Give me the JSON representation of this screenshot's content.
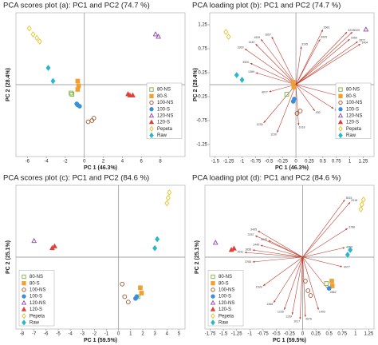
{
  "chart_data": [
    {
      "type": "scatter",
      "title": "PCA scores plot (a): PC1  and PC2 (74.7 %)",
      "x_label": "PC 1 (46.3%)",
      "y_label": "PC 2 (28.4%)",
      "xlim": [
        -7.2,
        10.6
      ],
      "ylim": [
        -6,
        6
      ],
      "xticks": [
        -6,
        -4,
        -2,
        0,
        2,
        4,
        6,
        8
      ],
      "legend": "right",
      "series": [
        {
          "name": "80-NS",
          "color": "#7cb342",
          "marker": "square",
          "filled": false,
          "x": [
            -1.4,
            -1.3
          ],
          "values": [
            -0.7,
            -0.8
          ]
        },
        {
          "name": "80-S",
          "color": "#f0a030",
          "marker": "square",
          "filled": true,
          "x": [
            -0.7,
            -0.6,
            -0.7
          ],
          "values": [
            0.3,
            -0.1,
            -0.4
          ]
        },
        {
          "name": "100-NS",
          "color": "#a0522d",
          "marker": "circle",
          "filled": false,
          "x": [
            0.4,
            0.8,
            1.0
          ],
          "values": [
            -3.1,
            -3.0,
            -2.8
          ]
        },
        {
          "name": "100-S",
          "color": "#3b8fd9",
          "marker": "circle",
          "filled": true,
          "x": [
            -0.7,
            -0.5,
            -0.8
          ],
          "values": [
            -1.7,
            -1.8,
            -1.6
          ]
        },
        {
          "name": "120-NS",
          "color": "#8e44ad",
          "marker": "triangle",
          "filled": false,
          "x": [
            7.5,
            7.8
          ],
          "values": [
            4.2,
            4.0
          ]
        },
        {
          "name": "120-S",
          "color": "#e0403a",
          "marker": "triangle",
          "filled": true,
          "x": [
            4.6,
            4.8,
            5.1
          ],
          "values": [
            -0.8,
            -0.9,
            -0.9
          ]
        },
        {
          "name": "Pepeta",
          "color": "#e6c229",
          "marker": "diamond",
          "filled": false,
          "x": [
            -5.8,
            -5.4,
            -5.0,
            -4.7
          ],
          "values": [
            4.7,
            4.2,
            3.9,
            3.6
          ]
        },
        {
          "name": "Raw",
          "color": "#2ab7ca",
          "marker": "diamond",
          "filled": true,
          "x": [
            -3.8,
            -3.3
          ],
          "values": [
            1.4,
            0.3
          ]
        }
      ]
    },
    {
      "type": "loading",
      "title": "PCA loading plot (b): PC1  and PC2 (74.7 %)",
      "x_label": "PC 1 (46.3%)",
      "y_label": "PC 2 (28.4%)",
      "xlim": [
        -1.6,
        1.45
      ],
      "ylim": [
        -1.5,
        1.5
      ],
      "xticks": [
        -1.5,
        -1.25,
        -1,
        -0.75,
        -0.5,
        -0.25,
        0,
        0.25,
        0.5,
        0.75,
        1,
        1.25
      ],
      "yticks": [
        1.25,
        0.75,
        0.25,
        -0.25,
        -0.75,
        -1.25
      ],
      "legend": "right",
      "series": [
        {
          "name": "80-NS",
          "color": "#7cb342",
          "marker": "square",
          "filled": false,
          "x": [
            -0.17
          ],
          "values": [
            -0.2
          ]
        },
        {
          "name": "80-S",
          "color": "#f0a030",
          "marker": "square",
          "filled": true,
          "x": [
            -0.05,
            -0.04
          ],
          "values": [
            0.05,
            -0.05
          ]
        },
        {
          "name": "100-NS",
          "color": "#a0522d",
          "marker": "circle",
          "filled": false,
          "x": [
            0.02,
            0.08
          ],
          "values": [
            -0.6,
            -0.55
          ]
        },
        {
          "name": "100-S",
          "color": "#3b8fd9",
          "marker": "circle",
          "filled": true,
          "x": [
            -0.05,
            -0.03
          ],
          "values": [
            -0.35,
            -0.3
          ]
        },
        {
          "name": "120-NS",
          "color": "#8e44ad",
          "marker": "triangle",
          "filled": false,
          "x": [
            1.3
          ],
          "values": [
            1.15
          ]
        },
        {
          "name": "120-S",
          "color": "#e0403a",
          "marker": "triangle",
          "filled": true,
          "x": [
            0.85,
            0.9
          ],
          "values": [
            -0.15,
            -0.18
          ]
        },
        {
          "name": "Pepeta",
          "color": "#e6c229",
          "marker": "diamond",
          "filled": false,
          "x": [
            -1.3,
            -1.25
          ],
          "values": [
            1.1,
            1.0
          ]
        },
        {
          "name": "Raw",
          "color": "#2ab7ca",
          "marker": "diamond",
          "filled": true,
          "x": [
            -1.1,
            -1.0
          ],
          "values": [
            0.2,
            0.1
          ]
        }
      ],
      "loadings": {
        "color": "#c0392b",
        "x": [
          0.95,
          1.05,
          1.0,
          1.15,
          1.2,
          0.5,
          0.45,
          0.1,
          -0.45,
          -0.65,
          -0.75,
          -0.95,
          -0.85,
          -0.75,
          -0.5,
          -0.6,
          -0.35,
          0.05,
          0.35,
          0.7,
          0.85
        ],
        "y": [
          1.1,
          1.1,
          0.95,
          0.9,
          0.85,
          1.15,
          0.95,
          0.8,
          1.0,
          0.95,
          0.85,
          0.75,
          0.45,
          0.25,
          -0.15,
          -0.8,
          -1.0,
          -0.85,
          -0.55,
          -0.5,
          -0.25
        ],
        "labels": [
          "3222",
          "3320",
          "2959",
          "2877",
          "1404",
          "3581",
          "3005",
          "3195",
          "1657",
          "1539",
          "1440",
          "3300",
          "3520",
          "1369",
          "4077",
          "1235",
          "1150",
          "1018",
          "930",
          "850",
          "3786"
        ]
      }
    },
    {
      "type": "scatter",
      "title": "PCA scores plot (c): PC1  and PC2 (84.6 %)",
      "x_label": "PC 1 (59.5%)",
      "y_label": "PC 2 (25.1%)",
      "xlim": [
        -8.5,
        5.5
      ],
      "ylim": [
        -4,
        4
      ],
      "xticks": [
        -8,
        -7,
        -6,
        -5,
        -4,
        -3,
        -2,
        -1,
        0,
        1,
        2,
        3,
        4,
        5
      ],
      "legend": "lower left",
      "series": [
        {
          "name": "80-NS",
          "color": "#7cb342",
          "marker": "square",
          "filled": false,
          "x": [
            1.6
          ],
          "values": [
            -2.2
          ]
        },
        {
          "name": "80-S",
          "color": "#f0a030",
          "marker": "square",
          "filled": true,
          "x": [
            1.8,
            1.9
          ],
          "values": [
            -1.7,
            -2.0
          ]
        },
        {
          "name": "100-NS",
          "color": "#a0522d",
          "marker": "circle",
          "filled": false,
          "x": [
            0.3,
            0.5,
            0.8
          ],
          "values": [
            -1.5,
            -2.2,
            -2.5
          ]
        },
        {
          "name": "100-S",
          "color": "#3b8fd9",
          "marker": "circle",
          "filled": true,
          "x": [
            1.5,
            1.4
          ],
          "values": [
            -2.2,
            -2.3
          ]
        },
        {
          "name": "120-NS",
          "color": "#8e44ad",
          "marker": "triangle",
          "filled": false,
          "x": [
            -7.0
          ],
          "values": [
            0.9
          ]
        },
        {
          "name": "120-S",
          "color": "#e0403a",
          "marker": "triangle",
          "filled": true,
          "x": [
            -5.5,
            -5.3
          ],
          "values": [
            0.5,
            0.6
          ]
        },
        {
          "name": "Pepeta",
          "color": "#e6c229",
          "marker": "diamond",
          "filled": false,
          "x": [
            4.0,
            4.1,
            4.2
          ],
          "values": [
            3.0,
            3.3,
            3.6
          ]
        },
        {
          "name": "Raw",
          "color": "#2ab7ca",
          "marker": "diamond",
          "filled": true,
          "x": [
            3.0,
            3.2
          ],
          "values": [
            0.5,
            1.0
          ]
        }
      ]
    },
    {
      "type": "loading",
      "title": "PCA loading plot (d): PC1  and PC2 (84.6 %)",
      "x_label": "PC 1 (59.5%)",
      "y_label": "PC 2 (25.1%)",
      "xlim": [
        -1.85,
        1.35
      ],
      "ylim": [
        -1.5,
        1.5
      ],
      "xticks": [
        -1.75,
        -1.5,
        -1.25,
        -1,
        -0.75,
        -0.5,
        -0.25,
        0,
        0.25,
        0.5,
        0.75,
        1,
        1.25
      ],
      "legend": "lower left",
      "series": [
        {
          "name": "80-NS",
          "color": "#7cb342",
          "marker": "square",
          "filled": false,
          "x": [
            0.45
          ],
          "values": [
            -0.55
          ]
        },
        {
          "name": "80-S",
          "color": "#f0a030",
          "marker": "square",
          "filled": true,
          "x": [
            0.55,
            0.56
          ],
          "values": [
            -0.5,
            -0.6
          ]
        },
        {
          "name": "100-NS",
          "color": "#a0522d",
          "marker": "circle",
          "filled": false,
          "x": [
            0.05,
            0.1,
            0.15
          ],
          "values": [
            -0.5,
            -0.7,
            -0.8
          ]
        },
        {
          "name": "100-S",
          "color": "#3b8fd9",
          "marker": "circle",
          "filled": true,
          "x": [
            0.5
          ],
          "values": [
            -0.65
          ]
        },
        {
          "name": "120-NS",
          "color": "#8e44ad",
          "marker": "triangle",
          "filled": false,
          "x": [
            -1.65
          ],
          "values": [
            0.3
          ]
        },
        {
          "name": "120-S",
          "color": "#e0403a",
          "marker": "triangle",
          "filled": true,
          "x": [
            -1.35,
            -1.3
          ],
          "values": [
            0.15,
            0.18
          ]
        },
        {
          "name": "Pepeta",
          "color": "#e6c229",
          "marker": "diamond",
          "filled": false,
          "x": [
            1.1,
            1.12,
            1.15
          ],
          "values": [
            1.0,
            1.1,
            1.2
          ]
        },
        {
          "name": "Raw",
          "color": "#2ab7ca",
          "marker": "diamond",
          "filled": true,
          "x": [
            0.85,
            0.9
          ],
          "values": [
            0.05,
            0.15
          ]
        }
      ],
      "loadings": {
        "color": "#c0392b",
        "x": [
          0.8,
          0.9,
          0.85,
          0.8,
          0.75,
          0.5,
          0.3,
          0.05,
          -0.05,
          -0.2,
          -0.35,
          -0.55,
          -0.75,
          -0.65,
          -0.8,
          -0.95,
          -1.1,
          -0.9,
          -0.85,
          -0.95
        ],
        "y": [
          1.2,
          1.15,
          0.6,
          0.2,
          -0.2,
          -0.7,
          -1.1,
          -1.25,
          -1.3,
          -1.2,
          -1.1,
          -0.95,
          -0.6,
          0.35,
          0.25,
          0.15,
          0.1,
          0.45,
          0.55,
          -0.1
        ],
        "labels": [
          "3515",
          "2918",
          "3786",
          "4060",
          "4077",
          "2862",
          "1403",
          "4076",
          "1017",
          "1159",
          "1235",
          "1368",
          "1539",
          "4042",
          "1440",
          "1658",
          "3511",
          "3787",
          "3495",
          "3765"
        ]
      },
      "legend_names_override": null
    }
  ]
}
